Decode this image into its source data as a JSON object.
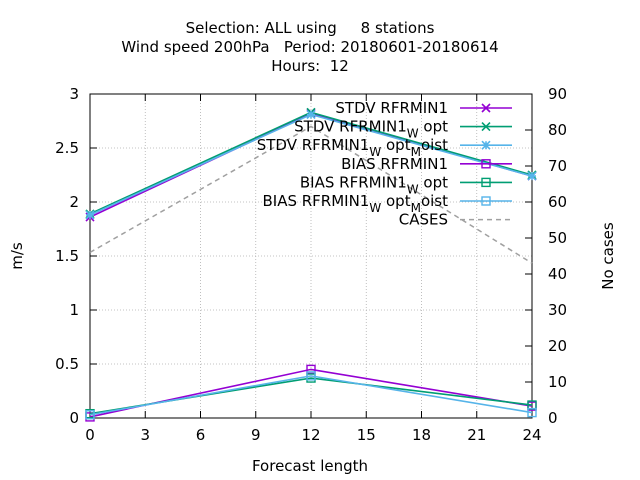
{
  "chart_data": {
    "type": "line",
    "title": {
      "line1": "Selection: ALL using     8 stations",
      "line2": "Wind speed 200hPa   Period: 20180601-20180614",
      "line3": "Hours:  12"
    },
    "xlabel": "Forecast length",
    "ylabel": "m/s",
    "y2label": "No cases",
    "xlim": [
      0,
      24
    ],
    "ylim": [
      0,
      3
    ],
    "y2lim": [
      0,
      90
    ],
    "xticks": [
      "0",
      "3",
      "6",
      "9",
      "12",
      "15",
      "18",
      "21",
      "24"
    ],
    "yticks": [
      "0",
      "0.5",
      "1",
      "1.5",
      "2",
      "2.5",
      "3"
    ],
    "y2ticks": [
      "0",
      "10",
      "20",
      "30",
      "40",
      "50",
      "60",
      "70",
      "80",
      "90"
    ],
    "grid": true,
    "legend_position": "top-right",
    "x": [
      0,
      12,
      24
    ],
    "series": [
      {
        "name": "STDV RFRMIN1",
        "name_sub": "",
        "name_tail": "",
        "axis": "y1",
        "marker": "x",
        "color": "#9400d3",
        "dash": false,
        "values": [
          1.86,
          2.82,
          2.24
        ]
      },
      {
        "name": "STDV RFRMIN1",
        "name_sub": "W",
        "name_tail": "opt",
        "axis": "y1",
        "marker": "x",
        "color": "#009e73",
        "dash": false,
        "values": [
          1.89,
          2.83,
          2.25
        ]
      },
      {
        "name": "STDV RFRMIN1",
        "name_sub": "W",
        "name_tail": "opt",
        "name_sub2": "M",
        "name_tail2": "oist",
        "axis": "y1",
        "marker": "star",
        "color": "#56b4e9",
        "dash": false,
        "values": [
          1.88,
          2.81,
          2.24
        ]
      },
      {
        "name": "BIAS RFRMIN1",
        "name_sub": "",
        "name_tail": "",
        "axis": "y1",
        "marker": "square",
        "color": "#9400d3",
        "dash": false,
        "values": [
          0.01,
          0.45,
          0.11
        ]
      },
      {
        "name": "BIAS RFRMIN1",
        "name_sub": "W",
        "name_tail": "opt",
        "axis": "y1",
        "marker": "square",
        "color": "#009e73",
        "dash": false,
        "values": [
          0.04,
          0.37,
          0.12
        ]
      },
      {
        "name": "BIAS RFRMIN1",
        "name_sub": "W",
        "name_tail": "opt",
        "name_sub2": "M",
        "name_tail2": "oist",
        "axis": "y1",
        "marker": "square",
        "color": "#56b4e9",
        "dash": false,
        "values": [
          0.03,
          0.39,
          0.05
        ]
      },
      {
        "name": "CASES",
        "name_sub": "",
        "name_tail": "",
        "axis": "y2",
        "marker": "none",
        "color": "#a0a0a0",
        "dash": true,
        "values": [
          46,
          81,
          43
        ]
      }
    ]
  }
}
